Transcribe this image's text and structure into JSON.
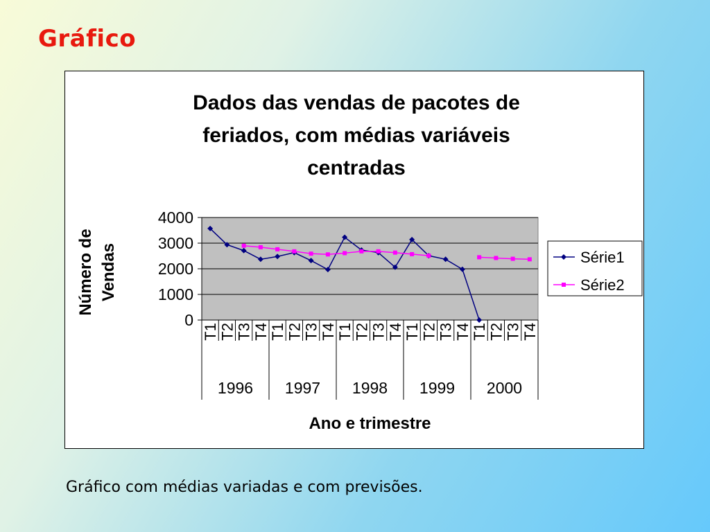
{
  "slide": {
    "title": "Gráfico",
    "caption": "Gráfico com médias variadas e com previsões."
  },
  "colors": {
    "title": "#e8190e",
    "plot_area": "#c0c0c0",
    "serie1": "#000080",
    "serie2": "#ff00ff"
  },
  "chart_data": {
    "type": "line",
    "title_lines": [
      "Dados das vendas de pacotes de",
      "feriados, com médias variáveis",
      "centradas"
    ],
    "xlabel": "Ano e trimestre",
    "ylabel_lines": [
      "Número de",
      "Vendas"
    ],
    "ylim": [
      0,
      4000
    ],
    "yticks": [
      0,
      1000,
      2000,
      3000,
      4000
    ],
    "grid": "horizontal",
    "legend_position": "right",
    "years": [
      "1996",
      "1997",
      "1998",
      "1999",
      "2000"
    ],
    "quarters": [
      "T1",
      "T2",
      "T3",
      "T4"
    ],
    "categories": [
      "1996 T1",
      "1996 T2",
      "1996 T3",
      "1996 T4",
      "1997 T1",
      "1997 T2",
      "1997 T3",
      "1997 T4",
      "1998 T1",
      "1998 T2",
      "1998 T3",
      "1998 T4",
      "1999 T1",
      "1999 T2",
      "1999 T3",
      "1999 T4",
      "2000 T1",
      "2000 T2",
      "2000 T3",
      "2000 T4"
    ],
    "series": [
      {
        "name": "Série1",
        "marker": "diamond",
        "values": [
          3570,
          2940,
          2710,
          2370,
          2480,
          2630,
          2320,
          1970,
          3230,
          2730,
          2630,
          2060,
          3140,
          2510,
          2370,
          1980,
          0,
          null,
          null,
          null
        ]
      },
      {
        "name": "Série2",
        "marker": "square",
        "values": [
          null,
          null,
          2900,
          2840,
          2760,
          2680,
          2590,
          2560,
          2610,
          2680,
          2680,
          2630,
          2570,
          2510,
          null,
          null,
          2450,
          2420,
          2390,
          2370
        ]
      }
    ]
  }
}
